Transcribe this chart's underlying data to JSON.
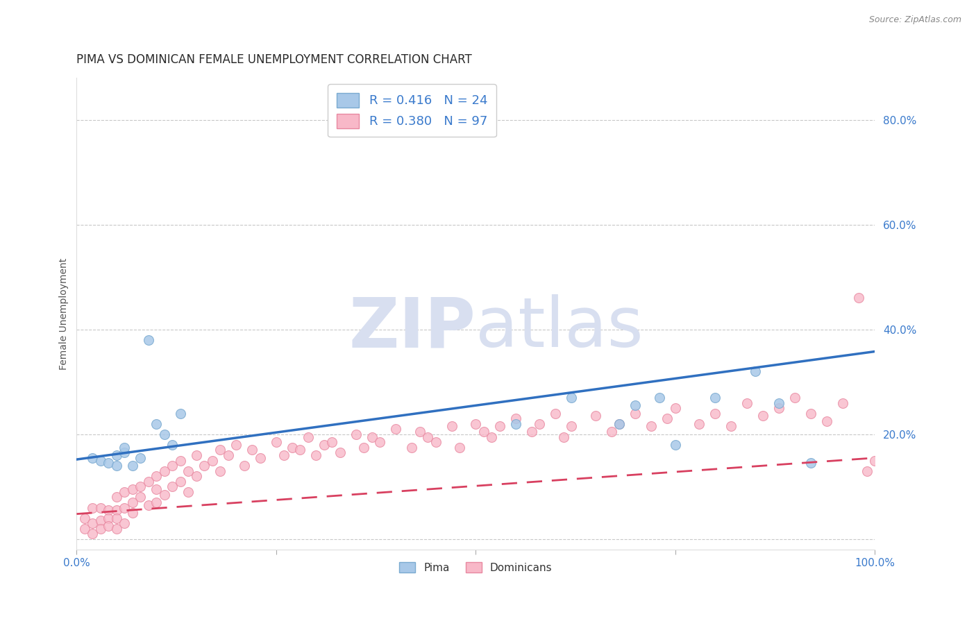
{
  "title": "PIMA VS DOMINICAN FEMALE UNEMPLOYMENT CORRELATION CHART",
  "source_text": "Source: ZipAtlas.com",
  "ylabel": "Female Unemployment",
  "xlim": [
    0,
    1.0
  ],
  "ylim": [
    -0.02,
    0.88
  ],
  "yticks": [
    0.0,
    0.2,
    0.4,
    0.6,
    0.8
  ],
  "ytick_labels": [
    "",
    "20.0%",
    "40.0%",
    "60.0%",
    "80.0%"
  ],
  "xticks": [
    0.0,
    0.25,
    0.5,
    0.75,
    1.0
  ],
  "xtick_labels": [
    "0.0%",
    "",
    "",
    "",
    "100.0%"
  ],
  "pima_color": "#a8c8e8",
  "pima_edge_color": "#7aaad0",
  "dominican_color": "#f8b8c8",
  "dominican_edge_color": "#e888a0",
  "pima_line_color": "#3070c0",
  "dominican_line_color": "#d84060",
  "background_color": "#ffffff",
  "grid_color": "#c8c8c8",
  "R_pima": 0.416,
  "N_pima": 24,
  "R_dominican": 0.38,
  "N_dominican": 97,
  "pima_scatter_x": [
    0.02,
    0.03,
    0.04,
    0.05,
    0.05,
    0.06,
    0.06,
    0.07,
    0.08,
    0.09,
    0.1,
    0.11,
    0.12,
    0.13,
    0.55,
    0.62,
    0.68,
    0.7,
    0.73,
    0.75,
    0.8,
    0.85,
    0.88,
    0.92
  ],
  "pima_scatter_y": [
    0.155,
    0.15,
    0.145,
    0.16,
    0.14,
    0.165,
    0.175,
    0.14,
    0.155,
    0.38,
    0.22,
    0.2,
    0.18,
    0.24,
    0.22,
    0.27,
    0.22,
    0.255,
    0.27,
    0.18,
    0.27,
    0.32,
    0.26,
    0.145
  ],
  "dominican_scatter_x": [
    0.01,
    0.01,
    0.02,
    0.02,
    0.02,
    0.03,
    0.03,
    0.03,
    0.04,
    0.04,
    0.04,
    0.05,
    0.05,
    0.05,
    0.05,
    0.06,
    0.06,
    0.06,
    0.07,
    0.07,
    0.07,
    0.08,
    0.08,
    0.09,
    0.09,
    0.1,
    0.1,
    0.1,
    0.11,
    0.11,
    0.12,
    0.12,
    0.13,
    0.13,
    0.14,
    0.14,
    0.15,
    0.15,
    0.16,
    0.17,
    0.18,
    0.18,
    0.19,
    0.2,
    0.21,
    0.22,
    0.23,
    0.25,
    0.26,
    0.27,
    0.28,
    0.29,
    0.3,
    0.31,
    0.32,
    0.33,
    0.35,
    0.36,
    0.37,
    0.38,
    0.4,
    0.42,
    0.43,
    0.44,
    0.45,
    0.47,
    0.48,
    0.5,
    0.51,
    0.52,
    0.53,
    0.55,
    0.57,
    0.58,
    0.6,
    0.61,
    0.62,
    0.65,
    0.67,
    0.68,
    0.7,
    0.72,
    0.74,
    0.75,
    0.78,
    0.8,
    0.82,
    0.84,
    0.86,
    0.88,
    0.9,
    0.92,
    0.94,
    0.96,
    0.98,
    0.99,
    1.0
  ],
  "dominican_scatter_y": [
    0.04,
    0.02,
    0.06,
    0.03,
    0.01,
    0.06,
    0.035,
    0.02,
    0.055,
    0.04,
    0.025,
    0.08,
    0.055,
    0.04,
    0.02,
    0.09,
    0.06,
    0.03,
    0.095,
    0.07,
    0.05,
    0.1,
    0.08,
    0.11,
    0.065,
    0.12,
    0.095,
    0.07,
    0.13,
    0.085,
    0.14,
    0.1,
    0.15,
    0.11,
    0.13,
    0.09,
    0.16,
    0.12,
    0.14,
    0.15,
    0.17,
    0.13,
    0.16,
    0.18,
    0.14,
    0.17,
    0.155,
    0.185,
    0.16,
    0.175,
    0.17,
    0.195,
    0.16,
    0.18,
    0.185,
    0.165,
    0.2,
    0.175,
    0.195,
    0.185,
    0.21,
    0.175,
    0.205,
    0.195,
    0.185,
    0.215,
    0.175,
    0.22,
    0.205,
    0.195,
    0.215,
    0.23,
    0.205,
    0.22,
    0.24,
    0.195,
    0.215,
    0.235,
    0.205,
    0.22,
    0.24,
    0.215,
    0.23,
    0.25,
    0.22,
    0.24,
    0.215,
    0.26,
    0.235,
    0.25,
    0.27,
    0.24,
    0.225,
    0.26,
    0.46,
    0.13,
    0.15
  ],
  "pima_trend_x": [
    0.0,
    1.0
  ],
  "pima_trend_y": [
    0.152,
    0.358
  ],
  "dominican_trend_x": [
    0.0,
    1.0
  ],
  "dominican_trend_y": [
    0.048,
    0.155
  ],
  "watermark_zip": "ZIP",
  "watermark_atlas": "atlas",
  "watermark_color": "#d8dff0",
  "legend_pima_label": "Pima",
  "legend_dominican_label": "Dominicans",
  "title_color": "#2a2a2a",
  "axis_label_color": "#555555",
  "tick_color_blue": "#3a7acc",
  "title_fontsize": 12,
  "legend_fontsize": 13,
  "axis_fontsize": 11,
  "marker_size": 10
}
